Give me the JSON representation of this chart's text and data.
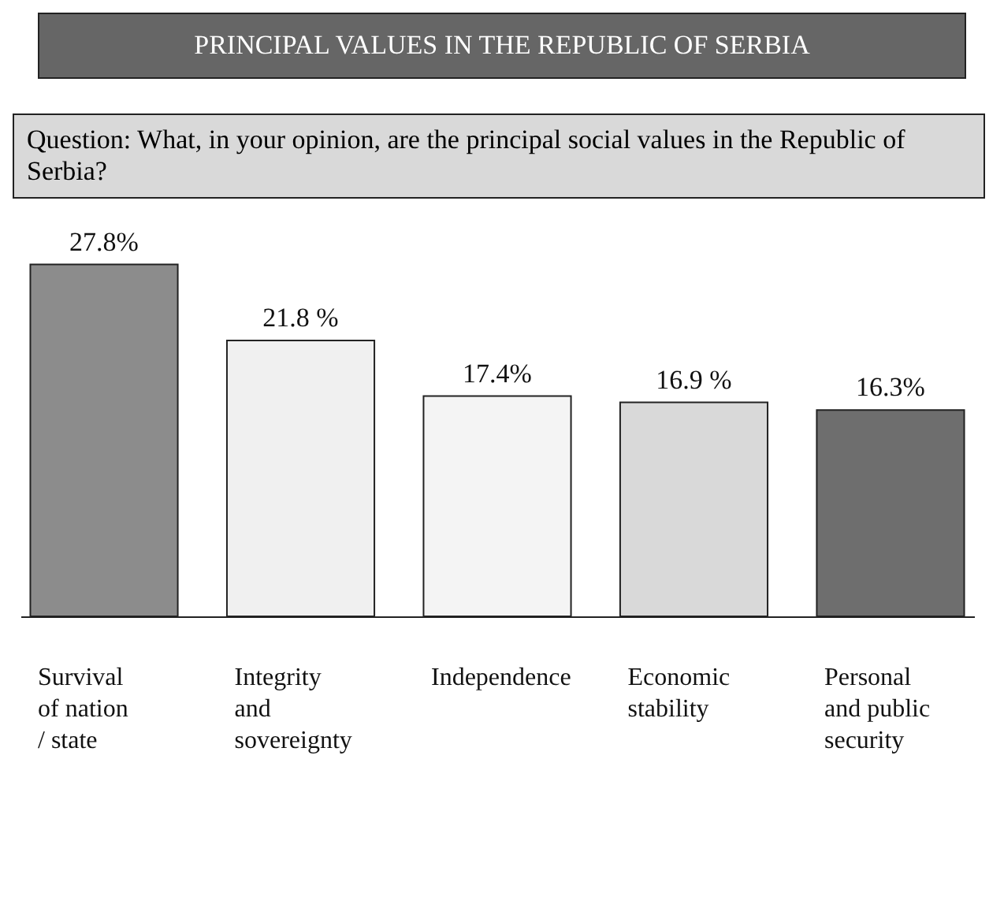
{
  "chart_data": {
    "type": "bar",
    "title": "PRINCIPAL VALUES IN THE REPUBLIC OF SERBIA",
    "subtitle": "Question: What, in your opinion, are the principal social values in the Republic of Serbia?",
    "categories": [
      "Survival of nation / state",
      "Integrity and sovereignty",
      "Independence",
      "Economic stability",
      "Personal and public security"
    ],
    "values": [
      27.8,
      21.8,
      17.4,
      16.9,
      16.3
    ],
    "colors": [
      "#8c8c8c",
      "#f0f0f0",
      "#f4f4f4",
      "#d9d9d9",
      "#6e6e6e"
    ],
    "value_labels": [
      "27.8%",
      "21.8 %",
      "17.4%",
      "16.9 %",
      "16.3%"
    ]
  }
}
